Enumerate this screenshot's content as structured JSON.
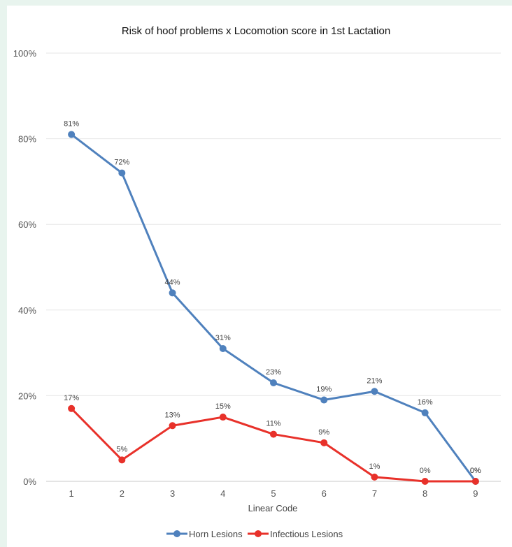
{
  "chart_data": {
    "type": "line",
    "title": "Risk of hoof problems x Locomotion score in 1st Lactation",
    "xlabel": "Linear Code",
    "ylabel": "",
    "categories": [
      "1",
      "2",
      "3",
      "4",
      "5",
      "6",
      "7",
      "8",
      "9"
    ],
    "ylim": [
      0,
      100
    ],
    "yticks": [
      "0%",
      "20%",
      "40%",
      "60%",
      "80%",
      "100%"
    ],
    "grid": true,
    "legend_position": "bottom",
    "series": [
      {
        "name": "Horn Lesions",
        "color": "#4f81bd",
        "values": [
          81,
          72,
          44,
          31,
          23,
          19,
          21,
          16,
          0
        ],
        "labels": [
          "81%",
          "72%",
          "44%",
          "31%",
          "23%",
          "19%",
          "21%",
          "16%",
          "0%"
        ]
      },
      {
        "name": "Infectious Lesions",
        "color": "#e8312a",
        "values": [
          17,
          5,
          13,
          15,
          11,
          9,
          1,
          0,
          0
        ],
        "labels": [
          "17%",
          "5%",
          "13%",
          "15%",
          "11%",
          "9%",
          "1%",
          "0%",
          "0%"
        ]
      }
    ]
  }
}
